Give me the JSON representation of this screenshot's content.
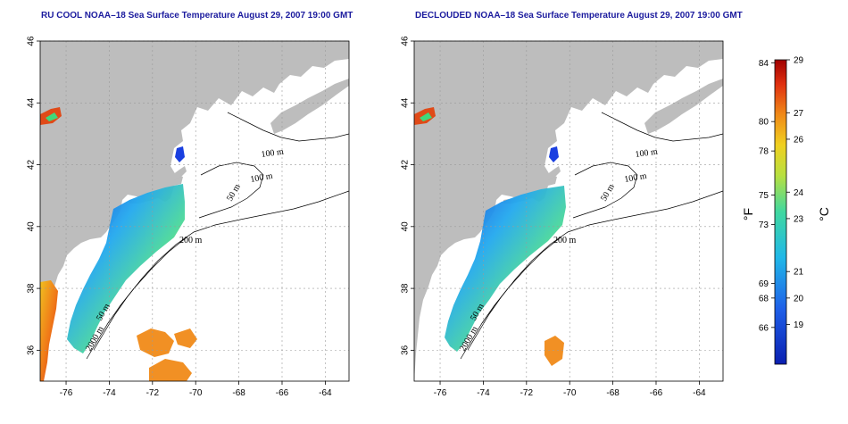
{
  "panels": [
    {
      "title": "RU COOL NOAA–18 Sea Surface Temperature August 29, 2007 19:00 GMT"
    },
    {
      "title": "DECLOUDED NOAA–18 Sea Surface Temperature August 29, 2007 19:00 GMT"
    }
  ],
  "axes": {
    "lon_ticks": [
      "-76",
      "-74",
      "-72",
      "-70",
      "-68",
      "-66",
      "-64"
    ],
    "lat_ticks": [
      "36",
      "38",
      "40",
      "42",
      "44",
      "46"
    ],
    "lon_range": [
      -77.2,
      -62.9
    ],
    "lat_range": [
      35.0,
      46.0
    ]
  },
  "contour_labels": [
    "100 m",
    "100 m",
    "50 m",
    "200 m",
    "50 m",
    "2000 m"
  ],
  "colorbar": {
    "fahrenheit_ticks": [
      "84",
      "80",
      "78",
      "75",
      "73",
      "69",
      "68",
      "66"
    ],
    "celsius_ticks": [
      "29",
      "27",
      "26",
      "24",
      "23",
      "21",
      "20",
      "19"
    ],
    "fahrenheit_unit": "°F",
    "celsius_unit": "°C",
    "range_c": [
      17.5,
      29.0
    ]
  },
  "colors": {
    "land": "#bdbdbd",
    "title": "#1b1b9e",
    "cold": "#0a1fb0",
    "warm": "#b00000"
  }
}
